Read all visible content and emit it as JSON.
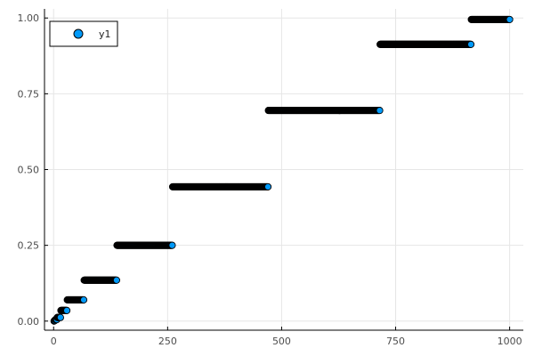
{
  "chart_data": {
    "type": "scatter",
    "title": "",
    "xlabel": "",
    "ylabel": "",
    "xlim": [
      -20,
      1030
    ],
    "ylim": [
      -0.03,
      1.03
    ],
    "grid": true,
    "legend_position": "top-left",
    "x_ticks": [
      {
        "value": 0,
        "label": "0"
      },
      {
        "value": 250,
        "label": "250"
      },
      {
        "value": 500,
        "label": "500"
      },
      {
        "value": 750,
        "label": "750"
      },
      {
        "value": 1000,
        "label": "1000"
      }
    ],
    "y_ticks": [
      {
        "value": 0,
        "label": "0.00"
      },
      {
        "value": 0.25,
        "label": "0.25"
      },
      {
        "value": 0.5,
        "label": "0.50"
      },
      {
        "value": 0.75,
        "label": "0.75"
      },
      {
        "value": 1.0,
        "label": "1.00"
      }
    ],
    "series": [
      {
        "name": "y1",
        "color": "#009af9",
        "stroke": "#000000",
        "steps": [
          {
            "x_start": 1,
            "x_end": 1,
            "y": 0.0
          },
          {
            "x_start": 2,
            "x_end": 3,
            "y": 0.002
          },
          {
            "x_start": 4,
            "x_end": 7,
            "y": 0.005
          },
          {
            "x_start": 8,
            "x_end": 15,
            "y": 0.012
          },
          {
            "x_start": 16,
            "x_end": 29,
            "y": 0.035
          },
          {
            "x_start": 30,
            "x_end": 66,
            "y": 0.07
          },
          {
            "x_start": 67,
            "x_end": 138,
            "y": 0.135
          },
          {
            "x_start": 139,
            "x_end": 260,
            "y": 0.25
          },
          {
            "x_start": 261,
            "x_end": 470,
            "y": 0.443
          },
          {
            "x_start": 471,
            "x_end": 715,
            "y": 0.695
          },
          {
            "x_start": 716,
            "x_end": 915,
            "y": 0.913
          },
          {
            "x_start": 916,
            "x_end": 1000,
            "y": 0.995
          }
        ]
      }
    ]
  }
}
